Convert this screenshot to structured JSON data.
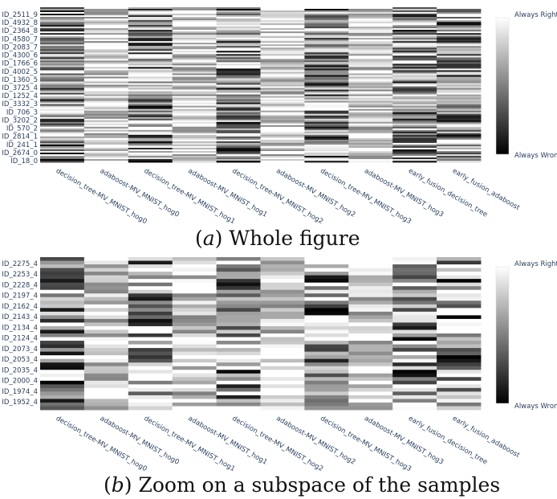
{
  "chart_data": [
    {
      "type": "heatmap",
      "caption_prefix": "(",
      "caption_letter": "a",
      "caption_suffix": ") Whole figure",
      "classifiers": [
        "decision_tree-MV_MNIST_hog0",
        "adaboost-MV_MNIST_hog0",
        "decision_tree-MV_MNIST_hog1",
        "adaboost-MV_MNIST_hog1",
        "decision_tree-MV_MNIST_hog2",
        "adaboost-MV_MNIST_hog2",
        "decision_tree-MV_MNIST_hog3",
        "adaboost-MV_MNIST_hog3",
        "early_fusion_decision_tree",
        "early_fusion_adaboost"
      ],
      "sample_labels": [
        "ID_2511_9",
        "ID_4932_8",
        "ID_2364_8",
        "ID_4580_7",
        "ID_2083_7",
        "ID_4300_6",
        "ID_1766_6",
        "ID_4002_5",
        "ID_1360_5",
        "ID_3725_4",
        "ID_1252_4",
        "ID_3332_3",
        "ID_706_3",
        "ID_3202_2",
        "ID_570_2",
        "ID_2814_1",
        "ID_241_1",
        "ID_2674_0",
        "ID_18_0"
      ],
      "n_rows": 96,
      "colorscale": {
        "max_label": "Always Right",
        "min_label": "Always Wrong",
        "max_color": "#ffffff",
        "min_color": "#000000"
      },
      "seed": 7
    },
    {
      "type": "heatmap",
      "caption_prefix": "(",
      "caption_letter": "b",
      "caption_suffix": ") Zoom on a subspace of the samples",
      "classifiers": [
        "decision_tree-MV_MNIST_hog0",
        "adaboost-MV_MNIST_hog0",
        "decision_tree-MV_MNIST_hog1",
        "adaboost-MV_MNIST_hog1",
        "decision_tree-MV_MNIST_hog2",
        "adaboost-MV_MNIST_hog2",
        "decision_tree-MV_MNIST_hog3",
        "adaboost-MV_MNIST_hog3",
        "early_fusion_decision_tree",
        "early_fusion_adaboost"
      ],
      "sample_labels": [
        "ID_2275_4",
        "ID_2253_4",
        "ID_2228_4",
        "ID_2197_4",
        "ID_2162_4",
        "ID_2143_4",
        "ID_2134_4",
        "ID_2124_4",
        "ID_2073_4",
        "ID_2053_4",
        "ID_2035_4",
        "ID_2000_4",
        "ID_1974_4",
        "ID_1952_4"
      ],
      "n_rows": 42,
      "colorscale": {
        "max_label": "Always Right",
        "min_label": "Always Wrong",
        "max_color": "#ffffff",
        "min_color": "#000000"
      },
      "seed": 23
    }
  ]
}
